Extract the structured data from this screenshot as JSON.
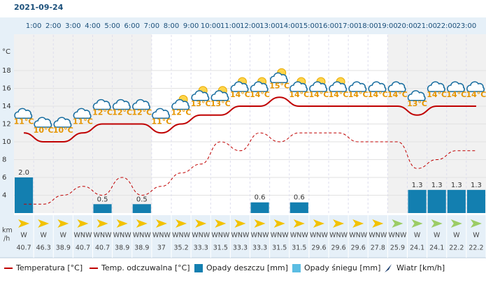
{
  "date": "2021-09-24",
  "chart_data": {
    "type": "line",
    "ylabel": "°C",
    "categories": [
      null,
      "1:00",
      "2:00",
      "3:00",
      "4:00",
      "5:00",
      "6:00",
      "7:00",
      "8:00",
      "9:00",
      "10:00",
      "11:00",
      "12:00",
      "13:00",
      "14:00",
      "15:00",
      "16:00",
      "17:00",
      "18:00",
      "19:00",
      "20:00",
      "21:00",
      "22:00",
      "23:00"
    ],
    "ylim": [
      2,
      22
    ],
    "yticks": [
      4,
      6,
      8,
      10,
      12,
      14,
      16,
      18
    ],
    "y2lim": [
      0,
      10
    ],
    "grid": true,
    "series": [
      {
        "name": "Temperatura [°C]",
        "color": "#c00000",
        "values": [
          11,
          10,
          10,
          11,
          12,
          12,
          12,
          11,
          12,
          13,
          13,
          14,
          14,
          15,
          14,
          14,
          14,
          14,
          14,
          14,
          13,
          14,
          14,
          14
        ],
        "value_labels": [
          "11°C",
          "10°C",
          "10°C",
          "11°C",
          "12°C",
          "12°C",
          "12°C",
          "11°C",
          "12°C",
          "13°C",
          "13°C",
          "14°C",
          "14°C",
          "15°C",
          "14°C",
          "14°C",
          "14°C",
          "14°C",
          "14°C",
          "14°C",
          "13°C",
          "14°C",
          "14°C",
          "14°C"
        ]
      },
      {
        "name": "Temp. odczuwalna [°C]",
        "color": "#c00000",
        "dashed": true,
        "values": [
          3,
          3,
          4,
          5,
          4,
          6,
          4,
          5,
          6.5,
          7.5,
          10,
          9,
          11,
          10,
          11,
          11,
          11,
          10,
          10,
          10,
          7,
          8,
          9,
          9
        ]
      },
      {
        "name": "Opady deszczu [mm]",
        "color": "#137fb0",
        "type": "bar",
        "axis": "y2",
        "values": [
          2.0,
          0,
          0,
          0,
          0.5,
          0,
          0.5,
          0,
          0,
          0,
          0,
          0,
          0.6,
          0,
          0.6,
          0,
          0,
          0,
          0,
          0,
          1.3,
          1.3,
          1.3,
          1.3
        ],
        "value_labels": [
          "2.0",
          null,
          null,
          null,
          "0.5",
          null,
          "0.5",
          null,
          null,
          null,
          null,
          null,
          "0.6",
          null,
          "0.6",
          null,
          null,
          null,
          null,
          null,
          "1.3",
          "1.3",
          "1.3",
          "1.3"
        ]
      },
      {
        "name": "Opady śniegu [mm]",
        "color": "#5bbde3",
        "type": "bar",
        "axis": "y2",
        "values": [
          0,
          0,
          0,
          0,
          0,
          0,
          0,
          0,
          0,
          0,
          0,
          0,
          0,
          0,
          0,
          0,
          0,
          0,
          0,
          0,
          0,
          0,
          0,
          0
        ]
      }
    ],
    "wind": {
      "name": "Wiatr [km/h]",
      "unit": [
        "km",
        "/h"
      ],
      "directions": [
        "W",
        "W",
        "W",
        "WNW",
        "WNW",
        "WNW",
        "WNW",
        "WNW",
        "WNW",
        "WNW",
        "WNW",
        "WNW",
        "WNW",
        "WNW",
        "WNW",
        "WNW",
        "WNW",
        "WNW",
        "WNW",
        "WNW",
        "W",
        "W",
        "W",
        "W"
      ],
      "values": [
        40.7,
        46.3,
        38.9,
        40.7,
        40.7,
        38.9,
        38.9,
        37,
        35.2,
        33.3,
        31.5,
        33.3,
        33.3,
        31.5,
        31.5,
        29.6,
        29.6,
        29.6,
        27.8,
        25.9,
        24.1,
        24.1,
        22.2,
        22.2
      ]
    }
  }
}
